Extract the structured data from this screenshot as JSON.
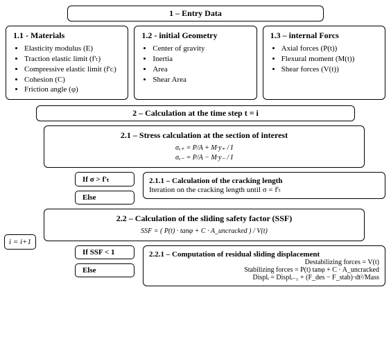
{
  "type": "flowchart",
  "background_color": "#ffffff",
  "text_color": "#000000",
  "border_color": "#000000",
  "font_family": "Times New Roman",
  "title_fontsize": 12,
  "body_fontsize": 11,
  "formula_fontsize": 10,
  "border_radius": 6,
  "nodes": {
    "entry": {
      "label": "1 – Entry Data"
    },
    "materials": {
      "title": "1.1 - Materials",
      "items": [
        "Elasticity modulus (E)",
        "Traction elastic limit (f'ₜ)",
        "Compressive elastic limit (f'ᴄ)",
        "Cohesion (C)",
        "Friction angle (φ)"
      ]
    },
    "geometry": {
      "title": "1.2 -  initial Geometry",
      "items": [
        "Center of gravity",
        "Inertia",
        "Area",
        "Shear Area"
      ]
    },
    "forces": {
      "title": "1.3 – internal Forcs",
      "items": [
        "Axial forces (P(t))",
        "Flexural moment (M(t))",
        "Shear forces (V(t))"
      ]
    },
    "calc": {
      "label": "2 – Calculation at the time step t = i"
    },
    "stress": {
      "title": "2.1 – Stress calculation at the section of interest",
      "formula1": "σₓ₊ = P/A + M·y₊ / I",
      "formula2": "σₓ₋ = P/A − M·y₋ / I"
    },
    "cond1_if": "If σ > f'ₜ",
    "cond1_else": "Else",
    "crack": {
      "title": "2.1.1 – Calculation of the cracking length",
      "text": "Iteration on the cracking length until σ = f'ₜ"
    },
    "ssf": {
      "title": "2.2 – Calculation of the sliding safety factor (SSF)",
      "formula": "SSF = ( P(t) · tanφ + C · A_uncracked ) / V(t)"
    },
    "cond2_if": "If SSF < 1",
    "cond2_else": "Else",
    "resid": {
      "title": "2.2.1 – Computation of residual sliding displacement",
      "line1": "Destabilizing forces = V(t)",
      "line2": "Stabilizing forces = P(t) tanφ + C · A_uncracked",
      "line3": "Displᵢ = Displᵢ₋₁ + (F_des − F_stab)·dt²/Mass"
    },
    "iter": {
      "label": "i = i+1"
    }
  },
  "edges": [
    [
      "entry",
      "materials"
    ],
    [
      "entry",
      "geometry"
    ],
    [
      "entry",
      "forces"
    ],
    [
      "materials",
      "calc"
    ],
    [
      "geometry",
      "calc"
    ],
    [
      "forces",
      "calc"
    ],
    [
      "calc",
      "stress"
    ],
    [
      "stress",
      "cond1"
    ],
    [
      "cond1_if",
      "crack"
    ],
    [
      "cond1_else",
      "ssf"
    ],
    [
      "crack",
      "ssf"
    ],
    [
      "ssf",
      "cond2"
    ],
    [
      "cond2_if",
      "resid"
    ],
    [
      "cond2_else",
      "iter"
    ],
    [
      "resid",
      "iter"
    ],
    [
      "iter",
      "calc"
    ]
  ]
}
